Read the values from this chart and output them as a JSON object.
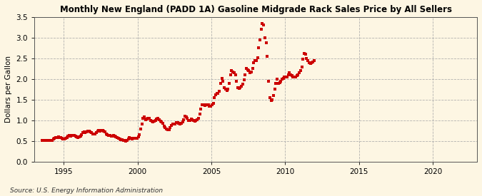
{
  "title": "Monthly New England (PADD 1A) Gasoline Midgrade Rack Sales Price by All Sellers",
  "ylabel": "Dollars per Gallon",
  "source": "Source: U.S. Energy Information Administration",
  "background_color": "#fdf6e3",
  "plot_bg_color": "#fdf6e3",
  "marker_color": "#cc0000",
  "marker": "s",
  "markersize": 2.2,
  "xlim_start": 1993,
  "xlim_end": 2023,
  "ylim": [
    0.0,
    3.5
  ],
  "yticks": [
    0.0,
    0.5,
    1.0,
    1.5,
    2.0,
    2.5,
    3.0,
    3.5
  ],
  "xticks": [
    1995,
    2000,
    2005,
    2010,
    2015,
    2020
  ],
  "data": [
    [
      1993,
      7,
      0.51
    ],
    [
      1993,
      8,
      0.52
    ],
    [
      1993,
      9,
      0.52
    ],
    [
      1993,
      10,
      0.52
    ],
    [
      1993,
      11,
      0.52
    ],
    [
      1993,
      12,
      0.51
    ],
    [
      1994,
      1,
      0.51
    ],
    [
      1994,
      2,
      0.51
    ],
    [
      1994,
      3,
      0.52
    ],
    [
      1994,
      4,
      0.55
    ],
    [
      1994,
      5,
      0.57
    ],
    [
      1994,
      6,
      0.58
    ],
    [
      1994,
      7,
      0.59
    ],
    [
      1994,
      8,
      0.6
    ],
    [
      1994,
      9,
      0.59
    ],
    [
      1994,
      10,
      0.58
    ],
    [
      1994,
      11,
      0.57
    ],
    [
      1994,
      12,
      0.56
    ],
    [
      1995,
      1,
      0.56
    ],
    [
      1995,
      2,
      0.57
    ],
    [
      1995,
      3,
      0.59
    ],
    [
      1995,
      4,
      0.62
    ],
    [
      1995,
      5,
      0.63
    ],
    [
      1995,
      6,
      0.62
    ],
    [
      1995,
      7,
      0.63
    ],
    [
      1995,
      8,
      0.64
    ],
    [
      1995,
      9,
      0.63
    ],
    [
      1995,
      10,
      0.62
    ],
    [
      1995,
      11,
      0.6
    ],
    [
      1995,
      12,
      0.59
    ],
    [
      1996,
      1,
      0.6
    ],
    [
      1996,
      2,
      0.62
    ],
    [
      1996,
      3,
      0.65
    ],
    [
      1996,
      4,
      0.7
    ],
    [
      1996,
      5,
      0.72
    ],
    [
      1996,
      6,
      0.71
    ],
    [
      1996,
      7,
      0.73
    ],
    [
      1996,
      8,
      0.74
    ],
    [
      1996,
      9,
      0.74
    ],
    [
      1996,
      10,
      0.73
    ],
    [
      1996,
      11,
      0.7
    ],
    [
      1996,
      12,
      0.68
    ],
    [
      1997,
      1,
      0.67
    ],
    [
      1997,
      2,
      0.68
    ],
    [
      1997,
      3,
      0.7
    ],
    [
      1997,
      4,
      0.74
    ],
    [
      1997,
      5,
      0.76
    ],
    [
      1997,
      6,
      0.74
    ],
    [
      1997,
      7,
      0.75
    ],
    [
      1997,
      8,
      0.76
    ],
    [
      1997,
      9,
      0.74
    ],
    [
      1997,
      10,
      0.72
    ],
    [
      1997,
      11,
      0.68
    ],
    [
      1997,
      12,
      0.66
    ],
    [
      1998,
      1,
      0.64
    ],
    [
      1998,
      2,
      0.63
    ],
    [
      1998,
      3,
      0.62
    ],
    [
      1998,
      4,
      0.62
    ],
    [
      1998,
      5,
      0.63
    ],
    [
      1998,
      6,
      0.62
    ],
    [
      1998,
      7,
      0.6
    ],
    [
      1998,
      8,
      0.59
    ],
    [
      1998,
      9,
      0.57
    ],
    [
      1998,
      10,
      0.55
    ],
    [
      1998,
      11,
      0.54
    ],
    [
      1998,
      12,
      0.53
    ],
    [
      1999,
      1,
      0.52
    ],
    [
      1999,
      2,
      0.51
    ],
    [
      1999,
      3,
      0.5
    ],
    [
      1999,
      4,
      0.52
    ],
    [
      1999,
      5,
      0.56
    ],
    [
      1999,
      6,
      0.58
    ],
    [
      1999,
      7,
      0.57
    ],
    [
      1999,
      8,
      0.56
    ],
    [
      1999,
      9,
      0.57
    ],
    [
      1999,
      10,
      0.57
    ],
    [
      1999,
      11,
      0.57
    ],
    [
      1999,
      12,
      0.57
    ],
    [
      2000,
      1,
      0.6
    ],
    [
      2000,
      2,
      0.65
    ],
    [
      2000,
      3,
      0.8
    ],
    [
      2000,
      4,
      0.92
    ],
    [
      2000,
      5,
      1.05
    ],
    [
      2000,
      6,
      1.08
    ],
    [
      2000,
      7,
      1.02
    ],
    [
      2000,
      8,
      1.03
    ],
    [
      2000,
      9,
      1.05
    ],
    [
      2000,
      10,
      1.05
    ],
    [
      2000,
      11,
      1.0
    ],
    [
      2000,
      12,
      0.98
    ],
    [
      2001,
      1,
      0.97
    ],
    [
      2001,
      2,
      0.98
    ],
    [
      2001,
      3,
      1.0
    ],
    [
      2001,
      4,
      1.03
    ],
    [
      2001,
      5,
      1.05
    ],
    [
      2001,
      6,
      1.02
    ],
    [
      2001,
      7,
      0.98
    ],
    [
      2001,
      8,
      0.97
    ],
    [
      2001,
      9,
      0.93
    ],
    [
      2001,
      10,
      0.87
    ],
    [
      2001,
      11,
      0.83
    ],
    [
      2001,
      12,
      0.8
    ],
    [
      2002,
      1,
      0.78
    ],
    [
      2002,
      2,
      0.78
    ],
    [
      2002,
      3,
      0.82
    ],
    [
      2002,
      4,
      0.88
    ],
    [
      2002,
      5,
      0.92
    ],
    [
      2002,
      6,
      0.91
    ],
    [
      2002,
      7,
      0.92
    ],
    [
      2002,
      8,
      0.95
    ],
    [
      2002,
      9,
      0.94
    ],
    [
      2002,
      10,
      0.93
    ],
    [
      2002,
      11,
      0.92
    ],
    [
      2002,
      12,
      0.93
    ],
    [
      2003,
      1,
      0.96
    ],
    [
      2003,
      2,
      1.01
    ],
    [
      2003,
      3,
      1.1
    ],
    [
      2003,
      4,
      1.08
    ],
    [
      2003,
      5,
      1.05
    ],
    [
      2003,
      6,
      1.0
    ],
    [
      2003,
      7,
      1.0
    ],
    [
      2003,
      8,
      1.03
    ],
    [
      2003,
      9,
      1.02
    ],
    [
      2003,
      10,
      1.0
    ],
    [
      2003,
      11,
      0.98
    ],
    [
      2003,
      12,
      1.0
    ],
    [
      2004,
      1,
      1.02
    ],
    [
      2004,
      2,
      1.06
    ],
    [
      2004,
      3,
      1.15
    ],
    [
      2004,
      4,
      1.28
    ],
    [
      2004,
      5,
      1.38
    ],
    [
      2004,
      6,
      1.38
    ],
    [
      2004,
      7,
      1.37
    ],
    [
      2004,
      8,
      1.38
    ],
    [
      2004,
      9,
      1.38
    ],
    [
      2004,
      10,
      1.38
    ],
    [
      2004,
      11,
      1.35
    ],
    [
      2004,
      12,
      1.35
    ],
    [
      2005,
      1,
      1.38
    ],
    [
      2005,
      2,
      1.42
    ],
    [
      2005,
      3,
      1.55
    ],
    [
      2005,
      4,
      1.62
    ],
    [
      2005,
      5,
      1.65
    ],
    [
      2005,
      6,
      1.65
    ],
    [
      2005,
      7,
      1.7
    ],
    [
      2005,
      8,
      1.9
    ],
    [
      2005,
      9,
      2.02
    ],
    [
      2005,
      10,
      1.95
    ],
    [
      2005,
      11,
      1.8
    ],
    [
      2005,
      12,
      1.75
    ],
    [
      2006,
      1,
      1.72
    ],
    [
      2006,
      2,
      1.75
    ],
    [
      2006,
      3,
      1.9
    ],
    [
      2006,
      4,
      2.1
    ],
    [
      2006,
      5,
      2.2
    ],
    [
      2006,
      6,
      2.18
    ],
    [
      2006,
      7,
      2.15
    ],
    [
      2006,
      8,
      2.1
    ],
    [
      2006,
      9,
      1.95
    ],
    [
      2006,
      10,
      1.8
    ],
    [
      2006,
      11,
      1.78
    ],
    [
      2006,
      12,
      1.8
    ],
    [
      2007,
      1,
      1.82
    ],
    [
      2007,
      2,
      1.87
    ],
    [
      2007,
      3,
      1.98
    ],
    [
      2007,
      4,
      2.1
    ],
    [
      2007,
      5,
      2.25
    ],
    [
      2007,
      6,
      2.22
    ],
    [
      2007,
      7,
      2.2
    ],
    [
      2007,
      8,
      2.15
    ],
    [
      2007,
      9,
      2.18
    ],
    [
      2007,
      10,
      2.25
    ],
    [
      2007,
      11,
      2.4
    ],
    [
      2007,
      12,
      2.45
    ],
    [
      2008,
      1,
      2.45
    ],
    [
      2008,
      2,
      2.52
    ],
    [
      2008,
      3,
      2.75
    ],
    [
      2008,
      4,
      2.95
    ],
    [
      2008,
      5,
      3.2
    ],
    [
      2008,
      6,
      3.35
    ],
    [
      2008,
      7,
      3.3
    ],
    [
      2008,
      8,
      3.0
    ],
    [
      2008,
      9,
      2.88
    ],
    [
      2008,
      10,
      2.55
    ],
    [
      2008,
      11,
      1.95
    ],
    [
      2008,
      12,
      1.55
    ],
    [
      2009,
      1,
      1.48
    ],
    [
      2009,
      2,
      1.5
    ],
    [
      2009,
      3,
      1.6
    ],
    [
      2009,
      4,
      1.75
    ],
    [
      2009,
      5,
      1.9
    ],
    [
      2009,
      6,
      2.0
    ],
    [
      2009,
      7,
      1.9
    ],
    [
      2009,
      8,
      1.92
    ],
    [
      2009,
      9,
      1.95
    ],
    [
      2009,
      10,
      2.0
    ],
    [
      2009,
      11,
      2.02
    ],
    [
      2009,
      12,
      2.05
    ],
    [
      2010,
      1,
      2.05
    ],
    [
      2010,
      2,
      2.05
    ],
    [
      2010,
      3,
      2.1
    ],
    [
      2010,
      4,
      2.15
    ],
    [
      2010,
      5,
      2.1
    ],
    [
      2010,
      6,
      2.08
    ],
    [
      2010,
      7,
      2.05
    ],
    [
      2010,
      8,
      2.05
    ],
    [
      2010,
      9,
      2.05
    ],
    [
      2010,
      10,
      2.08
    ],
    [
      2010,
      11,
      2.1
    ],
    [
      2010,
      12,
      2.15
    ],
    [
      2011,
      1,
      2.2
    ],
    [
      2011,
      2,
      2.3
    ],
    [
      2011,
      3,
      2.48
    ],
    [
      2011,
      4,
      2.62
    ],
    [
      2011,
      5,
      2.6
    ],
    [
      2011,
      6,
      2.5
    ],
    [
      2011,
      7,
      2.45
    ],
    [
      2011,
      8,
      2.4
    ],
    [
      2011,
      9,
      2.38
    ],
    [
      2011,
      10,
      2.4
    ],
    [
      2011,
      11,
      2.42
    ],
    [
      2011,
      12,
      2.45
    ]
  ]
}
